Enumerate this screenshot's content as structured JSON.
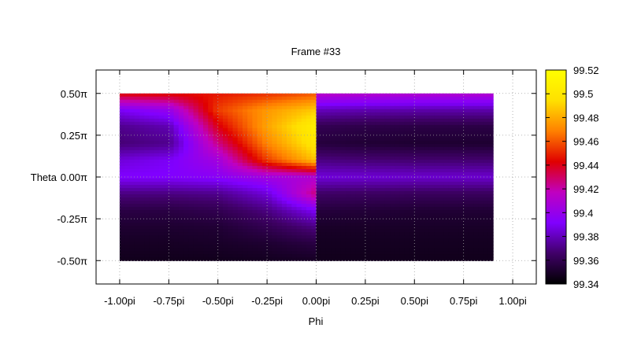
{
  "chart_data": {
    "type": "heatmap",
    "title": "Frame #33",
    "xlabel": "Phi",
    "ylabel": "Theta",
    "x_ticks": [
      {
        "value": -1.0,
        "label": "-1.00pi"
      },
      {
        "value": -0.75,
        "label": "-0.75pi"
      },
      {
        "value": -0.5,
        "label": "-0.50pi"
      },
      {
        "value": -0.25,
        "label": "-0.25pi"
      },
      {
        "value": 0.0,
        "label": "0.00pi"
      },
      {
        "value": 0.25,
        "label": "0.25pi"
      },
      {
        "value": 0.5,
        "label": "0.50pi"
      },
      {
        "value": 0.75,
        "label": "0.75pi"
      },
      {
        "value": 1.0,
        "label": "1.00pi"
      }
    ],
    "y_ticks": [
      {
        "value": 0.5,
        "label": "0.50π"
      },
      {
        "value": 0.25,
        "label": "0.25π"
      },
      {
        "value": 0.0,
        "label": "0.00π"
      },
      {
        "value": -0.25,
        "label": "-0.25π"
      },
      {
        "value": -0.5,
        "label": "-0.50π"
      }
    ],
    "xlim": [
      -1.12,
      1.12
    ],
    "ylim": [
      -0.64,
      0.64
    ],
    "data_x_range": [
      -1.0,
      0.9
    ],
    "data_y_range": [
      -0.5,
      0.5
    ],
    "grid": true,
    "colorbar": {
      "range": [
        99.34,
        99.52
      ],
      "ticks": [
        99.34,
        99.36,
        99.38,
        99.4,
        99.42,
        99.44,
        99.46,
        99.48,
        99.5,
        99.52
      ],
      "tick_labels": [
        "99.34",
        "99.36",
        "99.38",
        "99.4",
        "99.42",
        "99.44",
        "99.46",
        "99.48",
        "99.5",
        "99.52"
      ],
      "colormap": [
        "#000000",
        "#400068",
        "#8000ff",
        "#c000c0",
        "#e00000",
        "#ff8000",
        "#ffe000",
        "#ffff00"
      ]
    },
    "theta_rows": [
      0.5,
      0.4,
      0.3,
      0.2,
      0.1,
      0.0,
      -0.1,
      -0.2,
      -0.3,
      -0.4,
      -0.5
    ],
    "phi_cols": [
      -1.0,
      -0.75,
      -0.5,
      -0.25,
      -0.01,
      0.01,
      0.25,
      0.5,
      0.75,
      0.9
    ],
    "values": [
      [
        99.444,
        99.445,
        99.447,
        99.452,
        99.46,
        99.415,
        99.413,
        99.412,
        99.412,
        99.412
      ],
      [
        99.39,
        99.4,
        99.455,
        99.475,
        99.488,
        99.38,
        99.378,
        99.377,
        99.377,
        99.377
      ],
      [
        99.372,
        99.378,
        99.44,
        99.478,
        99.505,
        99.36,
        99.358,
        99.357,
        99.357,
        99.357
      ],
      [
        99.368,
        99.372,
        99.425,
        99.47,
        99.5,
        99.355,
        99.353,
        99.352,
        99.352,
        99.352
      ],
      [
        99.385,
        99.39,
        99.405,
        99.455,
        99.485,
        99.37,
        99.368,
        99.367,
        99.367,
        99.367
      ],
      [
        99.392,
        99.392,
        99.395,
        99.405,
        99.41,
        99.385,
        99.384,
        99.383,
        99.383,
        99.383
      ],
      [
        99.37,
        99.37,
        99.372,
        99.385,
        99.425,
        99.365,
        99.364,
        99.363,
        99.363,
        99.363
      ],
      [
        99.357,
        99.357,
        99.36,
        99.37,
        99.39,
        99.355,
        99.354,
        99.353,
        99.353,
        99.353
      ],
      [
        99.352,
        99.352,
        99.353,
        99.36,
        99.37,
        99.35,
        99.35,
        99.35,
        99.35,
        99.35
      ],
      [
        99.349,
        99.349,
        99.35,
        99.352,
        99.356,
        99.348,
        99.348,
        99.348,
        99.348,
        99.348
      ],
      [
        99.347,
        99.347,
        99.347,
        99.348,
        99.349,
        99.347,
        99.347,
        99.347,
        99.347,
        99.347
      ]
    ]
  }
}
